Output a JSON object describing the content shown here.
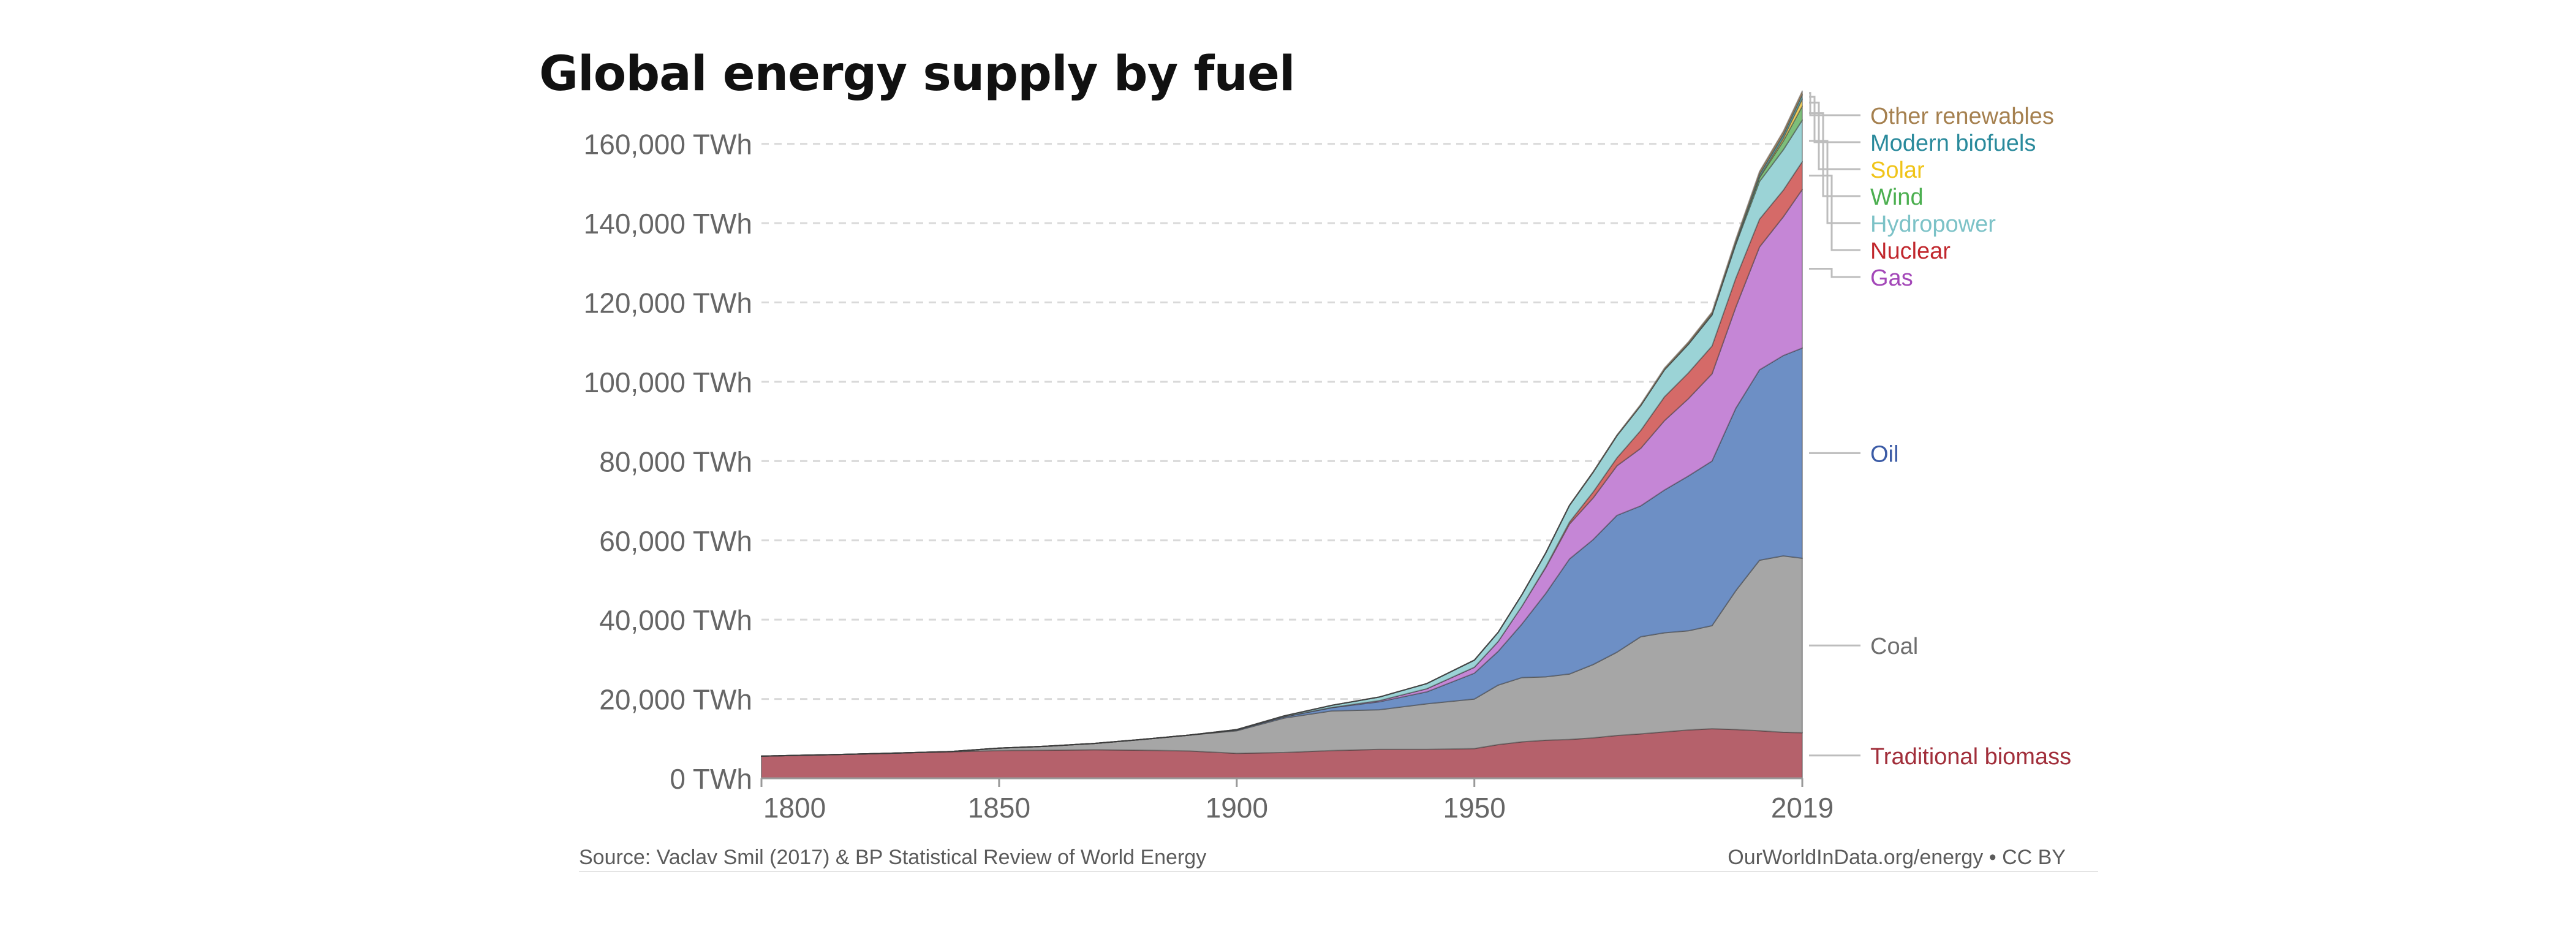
{
  "chart_data": {
    "type": "area",
    "stacked": true,
    "title": "Global energy supply by fuel",
    "source": "Source: Vaclav Smil (2017) & BP Statistical Review of World Energy",
    "credit": "OurWorldInData.org/energy • CC BY",
    "xlabel": "",
    "ylabel": "",
    "xlim": [
      1800,
      2019
    ],
    "ylim": [
      0,
      170000
    ],
    "grid": true,
    "x_ticks": [
      1800,
      1850,
      1900,
      1950,
      2019
    ],
    "y_ticks": [
      0,
      20000,
      40000,
      60000,
      80000,
      100000,
      120000,
      140000,
      160000
    ],
    "y_tick_labels": [
      "0 TWh",
      "20,000 TWh",
      "40,000 TWh",
      "60,000 TWh",
      "80,000 TWh",
      "100,000 TWh",
      "120,000 TWh",
      "140,000 TWh",
      "160,000 TWh"
    ],
    "x_tick_labels": [
      "1800",
      "1850",
      "1900",
      "1950",
      "2019"
    ],
    "x": [
      1800,
      1820,
      1840,
      1850,
      1860,
      1870,
      1880,
      1890,
      1900,
      1910,
      1920,
      1930,
      1940,
      1950,
      1955,
      1960,
      1965,
      1970,
      1975,
      1980,
      1985,
      1990,
      1995,
      2000,
      2005,
      2010,
      2015,
      2019
    ],
    "series": [
      {
        "name": "Traditional biomass",
        "color": "#b5616b",
        "label_color": "#a12e3a",
        "values": [
          5600,
          6100,
          6700,
          7000,
          7100,
          7200,
          7100,
          6900,
          6300,
          6500,
          7000,
          7300,
          7300,
          7500,
          8500,
          9200,
          9600,
          9800,
          10200,
          10800,
          11200,
          11700,
          12200,
          12500,
          12300,
          12000,
          11600,
          11500
        ]
      },
      {
        "name": "Coal",
        "color": "#a6a6a6",
        "label_color": "#6e6e6e",
        "values": [
          0,
          0,
          50,
          600,
          1000,
          1600,
          2700,
          4000,
          5700,
          8700,
          10000,
          10000,
          11500,
          12500,
          15000,
          16200,
          16000,
          16500,
          18500,
          21000,
          24500,
          25000,
          25000,
          26000,
          35000,
          43000,
          44500,
          44000
        ]
      },
      {
        "name": "Oil",
        "color": "#6d8fc5",
        "label_color": "#3b5ba6",
        "values": [
          0,
          0,
          0,
          0,
          0,
          0,
          0,
          0,
          200,
          300,
          800,
          2000,
          3000,
          6500,
          8500,
          13500,
          21000,
          29000,
          31500,
          34500,
          33000,
          36000,
          39000,
          41500,
          46000,
          48000,
          50500,
          53000
        ]
      },
      {
        "name": "Gas",
        "color": "#c586d6",
        "label_color": "#a347b8",
        "values": [
          0,
          0,
          0,
          0,
          0,
          0,
          0,
          0,
          0,
          50,
          100,
          300,
          800,
          1500,
          2500,
          4500,
          6500,
          8800,
          10500,
          12500,
          14500,
          17500,
          19500,
          22000,
          25500,
          31000,
          35000,
          40000
        ]
      },
      {
        "name": "Nuclear",
        "color": "#d56a68",
        "label_color": "#c1272d",
        "values": [
          0,
          0,
          0,
          0,
          0,
          0,
          0,
          0,
          0,
          0,
          0,
          0,
          0,
          0,
          0,
          0,
          200,
          500,
          1500,
          2000,
          4500,
          6000,
          6500,
          7000,
          7300,
          7000,
          6700,
          7000
        ]
      },
      {
        "name": "Hydropower",
        "color": "#9bd3d6",
        "label_color": "#7cc2c7",
        "values": [
          0,
          0,
          0,
          0,
          0,
          0,
          0,
          0,
          80,
          200,
          500,
          900,
          1300,
          1800,
          2300,
          2900,
          3500,
          4200,
          5000,
          5600,
          6300,
          6800,
          7200,
          7800,
          8500,
          9500,
          10200,
          10500
        ]
      },
      {
        "name": "Wind",
        "color": "#7dbf7a",
        "label_color": "#4caf50",
        "values": [
          0,
          0,
          0,
          0,
          0,
          0,
          0,
          0,
          0,
          0,
          0,
          0,
          0,
          0,
          0,
          0,
          0,
          0,
          0,
          0,
          0,
          0,
          0,
          100,
          300,
          1000,
          2200,
          3500
        ]
      },
      {
        "name": "Solar",
        "color": "#f2d15e",
        "label_color": "#f0c419",
        "values": [
          0,
          0,
          0,
          0,
          0,
          0,
          0,
          0,
          0,
          0,
          0,
          0,
          0,
          0,
          0,
          0,
          0,
          0,
          0,
          0,
          0,
          0,
          0,
          0,
          10,
          100,
          700,
          1800
        ]
      },
      {
        "name": "Modern biofuels",
        "color": "#5fa9ad",
        "label_color": "#2a8a9c",
        "values": [
          0,
          0,
          0,
          0,
          0,
          0,
          0,
          0,
          0,
          0,
          0,
          0,
          0,
          0,
          0,
          0,
          0,
          0,
          0,
          0,
          50,
          100,
          150,
          200,
          400,
          700,
          900,
          1100
        ]
      },
      {
        "name": "Other renewables",
        "color": "#b29166",
        "label_color": "#a5804f",
        "values": [
          0,
          0,
          0,
          0,
          0,
          0,
          0,
          0,
          0,
          0,
          0,
          0,
          0,
          0,
          0,
          0,
          0,
          50,
          100,
          150,
          250,
          350,
          450,
          500,
          600,
          750,
          850,
          900
        ]
      }
    ]
  }
}
